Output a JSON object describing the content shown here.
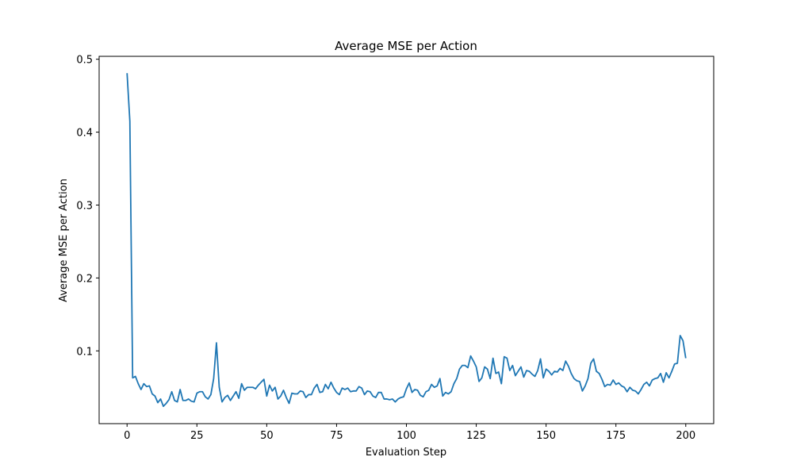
{
  "chart_data": {
    "type": "line",
    "title": "Average MSE per Action",
    "x_label": "Evaluation Step",
    "y_label": "Average MSE per Action",
    "x": [
      0,
      1,
      2,
      3,
      4,
      5,
      6,
      7,
      8,
      9,
      10,
      11,
      12,
      13,
      14,
      15,
      16,
      17,
      18,
      19,
      20,
      21,
      22,
      23,
      24,
      25,
      26,
      27,
      28,
      29,
      30,
      31,
      32,
      33,
      34,
      35,
      36,
      37,
      38,
      39,
      40,
      41,
      42,
      43,
      44,
      45,
      46,
      47,
      48,
      49,
      50,
      51,
      52,
      53,
      54,
      55,
      56,
      57,
      58,
      59,
      60,
      61,
      62,
      63,
      64,
      65,
      66,
      67,
      68,
      69,
      70,
      71,
      72,
      73,
      74,
      75,
      76,
      77,
      78,
      79,
      80,
      81,
      82,
      83,
      84,
      85,
      86,
      87,
      88,
      89,
      90,
      91,
      92,
      93,
      94,
      95,
      96,
      97,
      98,
      99,
      100,
      101,
      102,
      103,
      104,
      105,
      106,
      107,
      108,
      109,
      110,
      111,
      112,
      113,
      114,
      115,
      116,
      117,
      118,
      119,
      120,
      121,
      122,
      123,
      124,
      125,
      126,
      127,
      128,
      129,
      130,
      131,
      132,
      133,
      134,
      135,
      136,
      137,
      138,
      139,
      140,
      141,
      142,
      143,
      144,
      145,
      146,
      147,
      148,
      149,
      150,
      151,
      152,
      153,
      154,
      155,
      156,
      157,
      158,
      159,
      160,
      161,
      162,
      163,
      164,
      165,
      166,
      167,
      168,
      169,
      170,
      171,
      172,
      173,
      174,
      175,
      176,
      177,
      178,
      179,
      180,
      181,
      182,
      183,
      184,
      185,
      186,
      187,
      188,
      189,
      190,
      191,
      192,
      193,
      194,
      195,
      196,
      197,
      198,
      199,
      200
    ],
    "series": [
      {
        "color": "#1f77b4",
        "values": [
          0.481,
          0.415,
          0.063,
          0.065,
          0.055,
          0.047,
          0.055,
          0.051,
          0.052,
          0.041,
          0.038,
          0.029,
          0.034,
          0.024,
          0.028,
          0.033,
          0.044,
          0.032,
          0.03,
          0.047,
          0.032,
          0.032,
          0.034,
          0.031,
          0.03,
          0.042,
          0.044,
          0.044,
          0.037,
          0.034,
          0.04,
          0.062,
          0.111,
          0.05,
          0.03,
          0.036,
          0.039,
          0.032,
          0.038,
          0.044,
          0.035,
          0.055,
          0.046,
          0.05,
          0.05,
          0.05,
          0.048,
          0.053,
          0.057,
          0.061,
          0.038,
          0.053,
          0.045,
          0.05,
          0.034,
          0.038,
          0.046,
          0.036,
          0.028,
          0.042,
          0.041,
          0.041,
          0.045,
          0.044,
          0.036,
          0.04,
          0.04,
          0.049,
          0.054,
          0.043,
          0.044,
          0.054,
          0.048,
          0.057,
          0.049,
          0.043,
          0.04,
          0.049,
          0.047,
          0.049,
          0.044,
          0.045,
          0.045,
          0.051,
          0.049,
          0.04,
          0.045,
          0.044,
          0.038,
          0.036,
          0.043,
          0.043,
          0.034,
          0.034,
          0.033,
          0.034,
          0.03,
          0.034,
          0.036,
          0.037,
          0.048,
          0.056,
          0.043,
          0.047,
          0.046,
          0.039,
          0.037,
          0.044,
          0.046,
          0.054,
          0.05,
          0.052,
          0.062,
          0.038,
          0.043,
          0.041,
          0.044,
          0.055,
          0.062,
          0.075,
          0.08,
          0.08,
          0.077,
          0.093,
          0.086,
          0.078,
          0.058,
          0.063,
          0.078,
          0.075,
          0.062,
          0.09,
          0.069,
          0.071,
          0.055,
          0.092,
          0.09,
          0.073,
          0.08,
          0.066,
          0.072,
          0.078,
          0.064,
          0.073,
          0.072,
          0.068,
          0.065,
          0.073,
          0.089,
          0.063,
          0.075,
          0.072,
          0.067,
          0.072,
          0.071,
          0.076,
          0.073,
          0.086,
          0.079,
          0.069,
          0.062,
          0.059,
          0.058,
          0.045,
          0.052,
          0.062,
          0.083,
          0.089,
          0.072,
          0.069,
          0.061,
          0.051,
          0.054,
          0.053,
          0.06,
          0.054,
          0.056,
          0.052,
          0.05,
          0.044,
          0.05,
          0.046,
          0.045,
          0.041,
          0.047,
          0.054,
          0.057,
          0.052,
          0.06,
          0.062,
          0.063,
          0.069,
          0.057,
          0.07,
          0.063,
          0.072,
          0.082,
          0.083,
          0.121,
          0.114,
          0.09
        ]
      }
    ],
    "xlim": [
      -10,
      210
    ],
    "xticks": [
      0,
      25,
      50,
      75,
      100,
      125,
      150,
      175,
      200
    ],
    "ylim": [
      0.0002,
      0.504
    ],
    "yticks": [
      0.1,
      0.2,
      0.3,
      0.4,
      0.5
    ],
    "grid": false
  }
}
